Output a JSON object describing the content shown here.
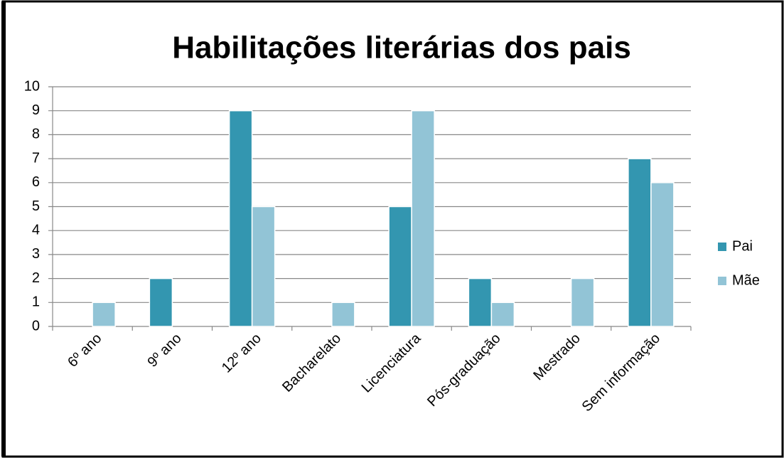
{
  "chart_data": {
    "type": "bar",
    "title": "Habilitações literárias dos pais",
    "categories": [
      "6º ano",
      "9º ano",
      "12º ano",
      "Bacharelato",
      "Licenciatura",
      "Pós-graduação",
      "Mestrado",
      "Sem informação"
    ],
    "series": [
      {
        "name": "Pai",
        "color": "#3396b0",
        "values": [
          0,
          2,
          9,
          0,
          5,
          2,
          0,
          7
        ]
      },
      {
        "name": "Mãe",
        "color": "#92c4d6",
        "values": [
          1,
          0,
          5,
          1,
          9,
          1,
          2,
          6
        ]
      }
    ],
    "ylim": [
      0,
      10
    ],
    "yticks": [
      0,
      1,
      2,
      3,
      4,
      5,
      6,
      7,
      8,
      9,
      10
    ],
    "grid": true,
    "legend": "right"
  }
}
